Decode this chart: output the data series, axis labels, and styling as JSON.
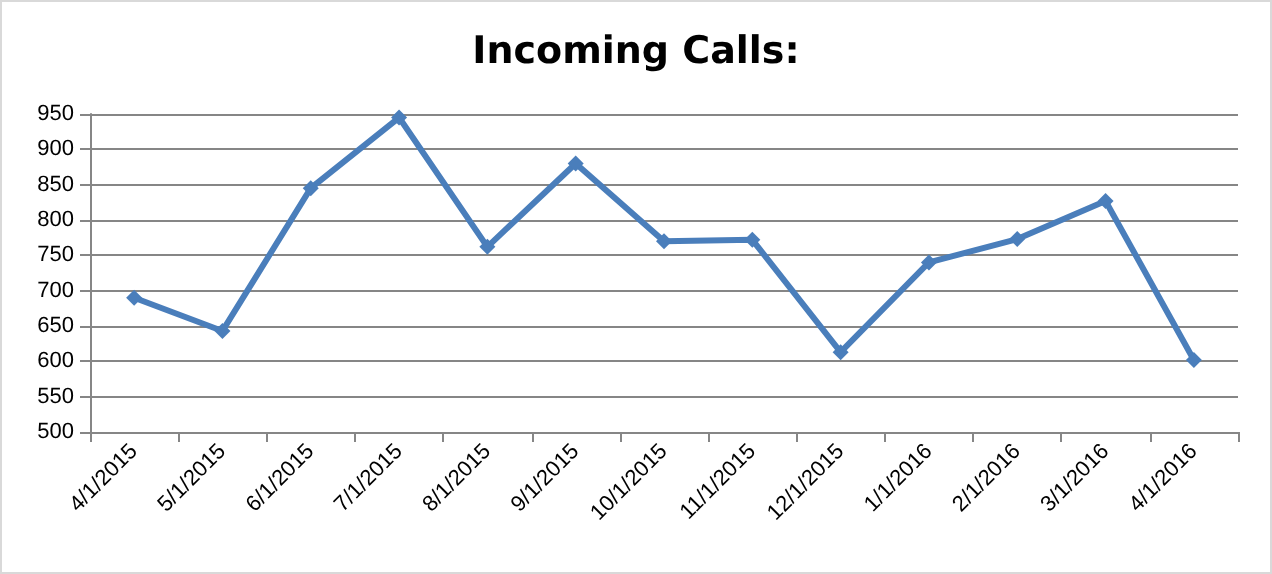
{
  "chart_data": {
    "type": "line",
    "title": "Incoming Calls:",
    "categories": [
      "4/1/2015",
      "5/1/2015",
      "6/1/2015",
      "7/1/2015",
      "8/1/2015",
      "9/1/2015",
      "10/1/2015",
      "11/1/2015",
      "12/1/2015",
      "1/1/2016",
      "2/1/2016",
      "3/1/2016",
      "4/1/2016"
    ],
    "series": [
      {
        "color": "#4a7ebb",
        "values": [
          690,
          643,
          845,
          945,
          762,
          880,
          770,
          772,
          613,
          740,
          773,
          827,
          602
        ]
      }
    ],
    "ylim": [
      500,
      950
    ],
    "yticks": [
      500,
      550,
      600,
      650,
      700,
      750,
      800,
      850,
      900,
      950
    ],
    "grid": "y",
    "marker": "diamond",
    "line_style": "solid"
  }
}
